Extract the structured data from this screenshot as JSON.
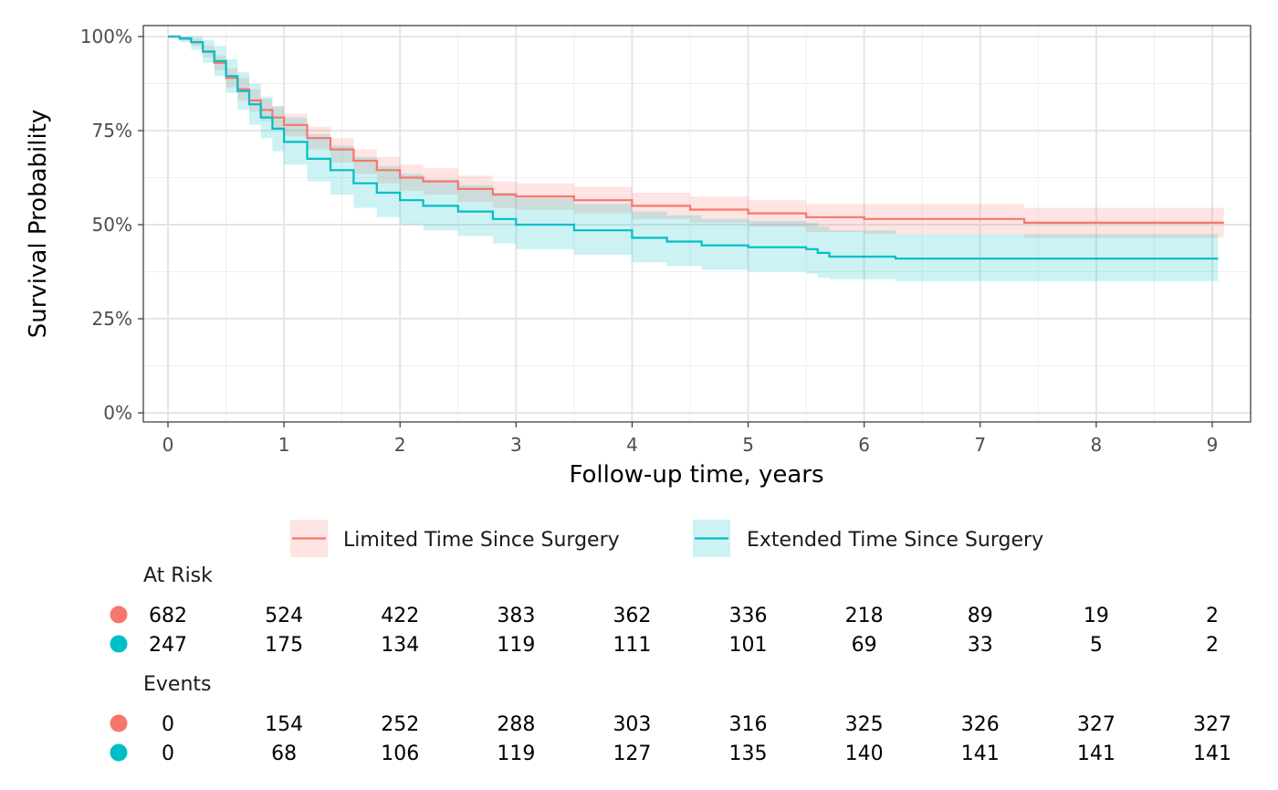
{
  "chart_data": {
    "type": "line",
    "subtype": "kaplan-meier",
    "xlabel": "Follow-up time, years",
    "ylabel": "Survival Probability",
    "xlim": [
      0,
      9.1
    ],
    "ylim": [
      0,
      1
    ],
    "x_ticks": [
      0,
      1,
      2,
      3,
      4,
      5,
      6,
      7,
      8,
      9
    ],
    "x_tick_labels": [
      "0",
      "1",
      "2",
      "3",
      "4",
      "5",
      "6",
      "7",
      "8",
      "9"
    ],
    "y_ticks": [
      0,
      0.25,
      0.5,
      0.75,
      1.0
    ],
    "y_tick_labels": [
      "0%",
      "25%",
      "50%",
      "75%",
      "100%"
    ],
    "grid": true,
    "legend_position": "bottom",
    "series": [
      {
        "name": "Limited Time Since Surgery",
        "color": "#F8766D",
        "band_color": "#F8766D",
        "x": [
          0,
          0.1,
          0.2,
          0.3,
          0.4,
          0.5,
          0.6,
          0.7,
          0.8,
          0.9,
          1.0,
          1.2,
          1.4,
          1.6,
          1.8,
          2.0,
          2.2,
          2.5,
          2.8,
          3.0,
          3.5,
          4.0,
          4.5,
          5.0,
          5.5,
          6.0,
          6.5,
          7.0,
          7.38,
          7.6,
          8.0,
          9.1
        ],
        "y": [
          1.0,
          0.995,
          0.985,
          0.96,
          0.93,
          0.89,
          0.86,
          0.83,
          0.805,
          0.785,
          0.765,
          0.73,
          0.7,
          0.67,
          0.645,
          0.625,
          0.615,
          0.595,
          0.58,
          0.575,
          0.565,
          0.55,
          0.54,
          0.53,
          0.52,
          0.515,
          0.515,
          0.515,
          0.505,
          0.505,
          0.505,
          0.505
        ],
        "lower": [
          1.0,
          0.99,
          0.975,
          0.945,
          0.91,
          0.865,
          0.83,
          0.8,
          0.775,
          0.755,
          0.735,
          0.7,
          0.665,
          0.635,
          0.61,
          0.59,
          0.58,
          0.56,
          0.545,
          0.54,
          0.53,
          0.515,
          0.505,
          0.495,
          0.48,
          0.475,
          0.475,
          0.475,
          0.465,
          0.465,
          0.465,
          0.465
        ],
        "upper": [
          1.0,
          1.0,
          0.995,
          0.975,
          0.95,
          0.915,
          0.89,
          0.86,
          0.835,
          0.815,
          0.795,
          0.76,
          0.73,
          0.7,
          0.68,
          0.66,
          0.65,
          0.63,
          0.615,
          0.61,
          0.6,
          0.585,
          0.575,
          0.565,
          0.555,
          0.555,
          0.555,
          0.555,
          0.545,
          0.545,
          0.545,
          0.545
        ]
      },
      {
        "name": "Extended Time Since Surgery",
        "color": "#00BFC4",
        "band_color": "#00BFC4",
        "x": [
          0,
          0.1,
          0.2,
          0.3,
          0.4,
          0.5,
          0.6,
          0.7,
          0.8,
          0.9,
          1.0,
          1.2,
          1.4,
          1.6,
          1.8,
          2.0,
          2.2,
          2.5,
          2.8,
          3.0,
          3.5,
          4.0,
          4.3,
          4.6,
          5.0,
          5.5,
          5.6,
          5.7,
          6.0,
          6.27,
          6.5,
          7.0,
          8.0,
          9.05
        ],
        "y": [
          1.0,
          0.995,
          0.985,
          0.96,
          0.935,
          0.895,
          0.855,
          0.82,
          0.785,
          0.755,
          0.72,
          0.675,
          0.645,
          0.61,
          0.585,
          0.565,
          0.55,
          0.535,
          0.515,
          0.5,
          0.485,
          0.465,
          0.455,
          0.445,
          0.44,
          0.435,
          0.425,
          0.415,
          0.415,
          0.41,
          0.41,
          0.41,
          0.41,
          0.41
        ],
        "lower": [
          1.0,
          0.985,
          0.965,
          0.93,
          0.895,
          0.85,
          0.805,
          0.765,
          0.73,
          0.695,
          0.66,
          0.615,
          0.58,
          0.545,
          0.52,
          0.5,
          0.485,
          0.47,
          0.45,
          0.435,
          0.42,
          0.4,
          0.39,
          0.38,
          0.375,
          0.37,
          0.36,
          0.355,
          0.355,
          0.35,
          0.35,
          0.35,
          0.35,
          0.35
        ],
        "upper": [
          1.0,
          1.0,
          1.0,
          0.99,
          0.975,
          0.94,
          0.905,
          0.875,
          0.84,
          0.815,
          0.785,
          0.74,
          0.71,
          0.68,
          0.655,
          0.635,
          0.62,
          0.605,
          0.585,
          0.57,
          0.555,
          0.535,
          0.525,
          0.515,
          0.51,
          0.505,
          0.495,
          0.485,
          0.485,
          0.475,
          0.475,
          0.475,
          0.475,
          0.475
        ]
      }
    ],
    "risk_table": {
      "at_risk_title": "At Risk",
      "events_title": "Events",
      "times": [
        0,
        1,
        2,
        3,
        4,
        5,
        6,
        7,
        8,
        9
      ],
      "at_risk": [
        {
          "series": "Limited Time Since Surgery",
          "color": "#F8766D",
          "values": [
            "682",
            "524",
            "422",
            "383",
            "362",
            "336",
            "218",
            "89",
            "19",
            "2"
          ]
        },
        {
          "series": "Extended Time Since Surgery",
          "color": "#00BFC4",
          "values": [
            "247",
            "175",
            "134",
            "119",
            "111",
            "101",
            "69",
            "33",
            "5",
            "2"
          ]
        }
      ],
      "events": [
        {
          "series": "Limited Time Since Surgery",
          "color": "#F8766D",
          "values": [
            "0",
            "154",
            "252",
            "288",
            "303",
            "316",
            "325",
            "326",
            "327",
            "327"
          ]
        },
        {
          "series": "Extended Time Since Surgery",
          "color": "#00BFC4",
          "values": [
            "0",
            "68",
            "106",
            "119",
            "127",
            "135",
            "140",
            "141",
            "141",
            "141"
          ]
        }
      ]
    }
  }
}
